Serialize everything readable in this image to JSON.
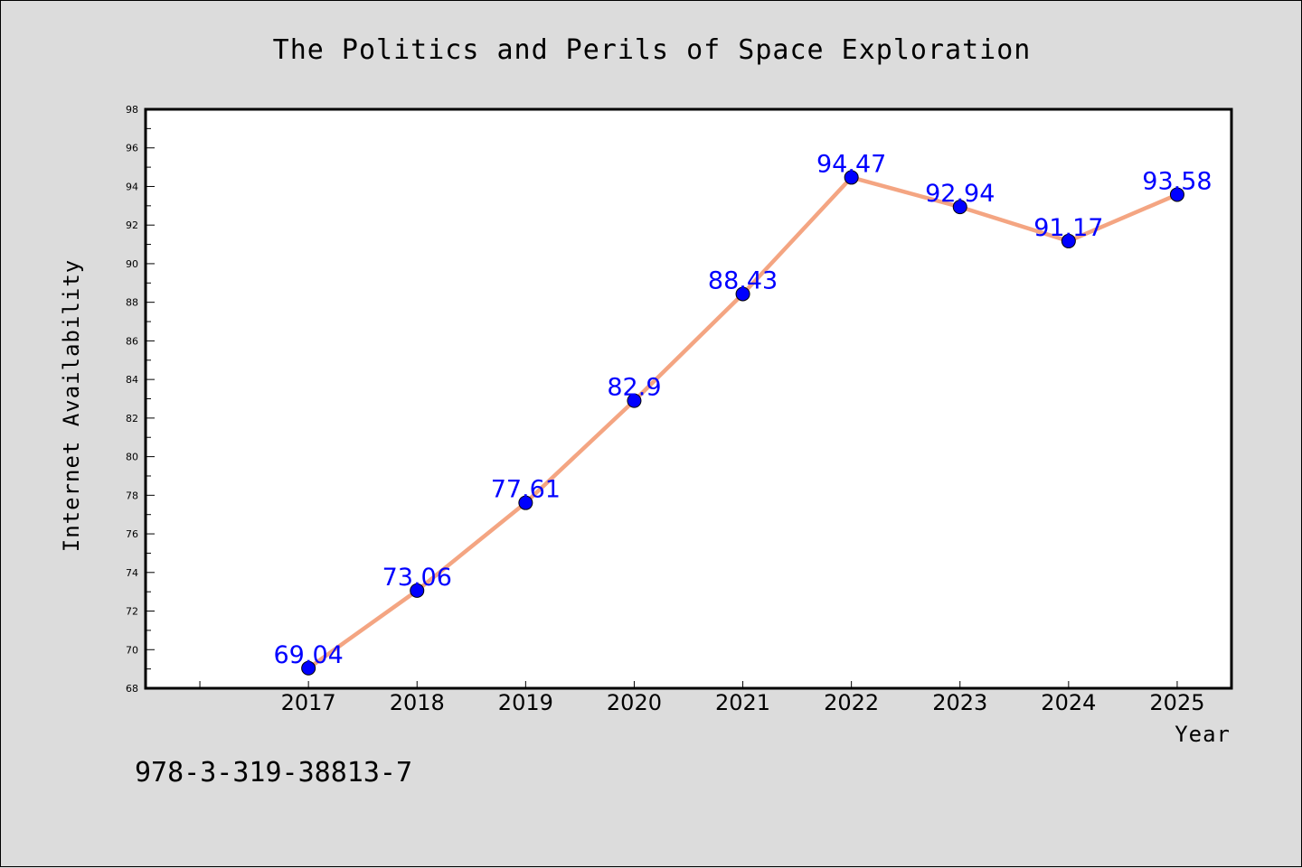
{
  "chart_data": {
    "type": "line",
    "title": "The Politics and Perils of Space Exploration",
    "xlabel": "Year",
    "ylabel": "Internet Availability",
    "x": [
      "2017",
      "2018",
      "2019",
      "2020",
      "2021",
      "2022",
      "2023",
      "2024",
      "2025"
    ],
    "series": [
      {
        "values": [
          69.04,
          73.06,
          77.61,
          82.9,
          88.43,
          94.47,
          92.94,
          91.17,
          93.58
        ],
        "labels": [
          "69.04",
          "73.06",
          "77.61",
          "82.9",
          "88.43",
          "94.47",
          "92.94",
          "91.17",
          "93.58"
        ]
      }
    ],
    "ylim": [
      68,
      98
    ],
    "yticks": [
      "68",
      "70",
      "72",
      "74",
      "76",
      "78",
      "80",
      "82",
      "84",
      "86",
      "88",
      "90",
      "92",
      "94",
      "96",
      "98"
    ],
    "xlim_start": "2016",
    "grid": false,
    "colors": {
      "line": "#f4a582",
      "marker": "#0000ff",
      "data_label": "#0000ff",
      "background": "#dcdcdc",
      "plot_area": "#ffffff"
    }
  },
  "footer": {
    "isbn": "978-3-319-38813-7"
  }
}
